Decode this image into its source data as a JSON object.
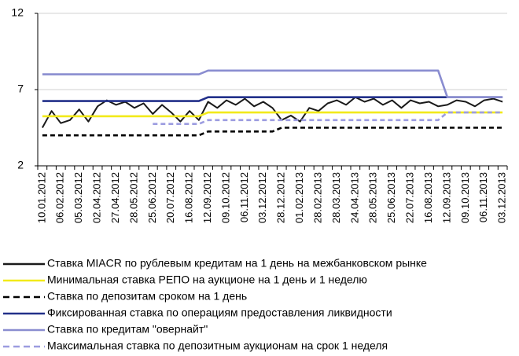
{
  "chart_data": {
    "type": "line",
    "categories": [
      "10.01.2012",
      null,
      "06.02.2012",
      null,
      "05.03.2012",
      null,
      "02.04.2012",
      null,
      "27.04.2012",
      null,
      "28.05.2012",
      null,
      "25.06.2012",
      null,
      "20.07.2012",
      null,
      "16.08.2012",
      null,
      "12.09.2012",
      null,
      "09.10.2012",
      null,
      "06.11.2012",
      null,
      "03.12.2012",
      null,
      "28.12.2012",
      null,
      "01.02.2013",
      null,
      "28.02.2013",
      null,
      "28.03.2013",
      null,
      "24.04.2013",
      null,
      "28.05.2013",
      null,
      "25.06.2013",
      null,
      "22.07.2013",
      null,
      "16.08.2013",
      null,
      "12.09.2013",
      null,
      "09.10.2013",
      null,
      "06.11.2013",
      null,
      "03.12.2013"
    ],
    "ylim": [
      2,
      12
    ],
    "yticks": [
      2,
      7,
      12
    ],
    "grid": true,
    "legend": "bottom",
    "series": [
      {
        "name": "Ставка MIACR по рублевым кредитам на 1 день на межбанковском рынке",
        "color": "#1a1a1a",
        "dashed": false,
        "values": [
          4.5,
          5.6,
          4.8,
          5.0,
          5.7,
          4.9,
          5.9,
          6.3,
          6.0,
          6.2,
          5.8,
          6.1,
          5.4,
          6.0,
          5.5,
          4.9,
          5.6,
          5.0,
          6.2,
          5.8,
          6.3,
          6.0,
          6.4,
          5.9,
          6.2,
          5.8,
          5.0,
          5.3,
          4.9,
          5.8,
          5.6,
          6.1,
          6.3,
          6.0,
          6.5,
          6.2,
          6.4,
          6.0,
          6.3,
          5.8,
          6.3,
          6.1,
          6.2,
          5.9,
          6.0,
          6.3,
          6.2,
          5.9,
          6.3,
          6.4,
          6.2
        ]
      },
      {
        "name": "Минимальная ставка РЕПО на аукционе на 1 день и 1 неделю",
        "color": "#f2ea1a",
        "dashed": false,
        "values": [
          5.25,
          5.25,
          5.25,
          5.25,
          5.25,
          5.25,
          5.25,
          5.25,
          5.25,
          5.25,
          5.25,
          5.25,
          5.25,
          5.25,
          5.25,
          5.25,
          5.25,
          5.25,
          5.5,
          5.5,
          5.5,
          5.5,
          5.5,
          5.5,
          5.5,
          5.5,
          5.5,
          5.5,
          5.5,
          5.5,
          5.5,
          5.5,
          5.5,
          5.5,
          5.5,
          5.5,
          5.5,
          5.5,
          5.5,
          5.5,
          5.5,
          5.5,
          5.5,
          5.5,
          5.5,
          5.5,
          5.5,
          5.5,
          5.5,
          5.5,
          5.5
        ]
      },
      {
        "name": "Ставка по депозитам сроком на 1 день",
        "color": "#000000",
        "dashed": true,
        "values": [
          4,
          4,
          4,
          4,
          4,
          4,
          4,
          4,
          4,
          4,
          4,
          4,
          4,
          4,
          4,
          4,
          4,
          4,
          4.25,
          4.25,
          4.25,
          4.25,
          4.25,
          4.25,
          4.25,
          4.25,
          4.5,
          4.5,
          4.5,
          4.5,
          4.5,
          4.5,
          4.5,
          4.5,
          4.5,
          4.5,
          4.5,
          4.5,
          4.5,
          4.5,
          4.5,
          4.5,
          4.5,
          4.5,
          4.5,
          4.5,
          4.5,
          4.5,
          4.5,
          4.5,
          4.5
        ]
      },
      {
        "name": "Фиксированная ставка по операциям предоставления ликвидности",
        "color": "#23318a",
        "dashed": false,
        "values": [
          6.25,
          6.25,
          6.25,
          6.25,
          6.25,
          6.25,
          6.25,
          6.25,
          6.25,
          6.25,
          6.25,
          6.25,
          6.25,
          6.25,
          6.25,
          6.25,
          6.25,
          6.25,
          6.5,
          6.5,
          6.5,
          6.5,
          6.5,
          6.5,
          6.5,
          6.5,
          6.5,
          6.5,
          6.5,
          6.5,
          6.5,
          6.5,
          6.5,
          6.5,
          6.5,
          6.5,
          6.5,
          6.5,
          6.5,
          6.5,
          6.5,
          6.5,
          6.5,
          6.5,
          6.5,
          6.5,
          6.5,
          6.5,
          6.5,
          6.5,
          6.5
        ]
      },
      {
        "name": "Ставка по кредитам \"овернайт\"",
        "color": "#8a8dd0",
        "dashed": false,
        "values": [
          8,
          8,
          8,
          8,
          8,
          8,
          8,
          8,
          8,
          8,
          8,
          8,
          8,
          8,
          8,
          8,
          8,
          8,
          8.25,
          8.25,
          8.25,
          8.25,
          8.25,
          8.25,
          8.25,
          8.25,
          8.25,
          8.25,
          8.25,
          8.25,
          8.25,
          8.25,
          8.25,
          8.25,
          8.25,
          8.25,
          8.25,
          8.25,
          8.25,
          8.25,
          8.25,
          8.25,
          8.25,
          8.25,
          6.5,
          6.5,
          6.5,
          6.5,
          6.5,
          6.5,
          6.5
        ]
      },
      {
        "name": "Максимальная ставка по депозитным аукционам на срок 1 неделя",
        "color": "#9c9ce0",
        "dashed": true,
        "values": [
          null,
          null,
          null,
          null,
          null,
          null,
          null,
          null,
          null,
          null,
          null,
          null,
          4.75,
          4.75,
          4.75,
          4.75,
          4.75,
          4.75,
          5,
          5,
          5,
          5,
          5,
          5,
          5,
          5,
          5,
          5,
          5,
          5,
          5,
          5,
          5,
          5,
          5,
          5,
          5,
          5,
          5,
          5,
          5,
          5,
          5,
          5,
          5.5,
          5.5,
          5.5,
          5.5,
          5.5,
          5.5,
          5.5
        ]
      }
    ]
  }
}
